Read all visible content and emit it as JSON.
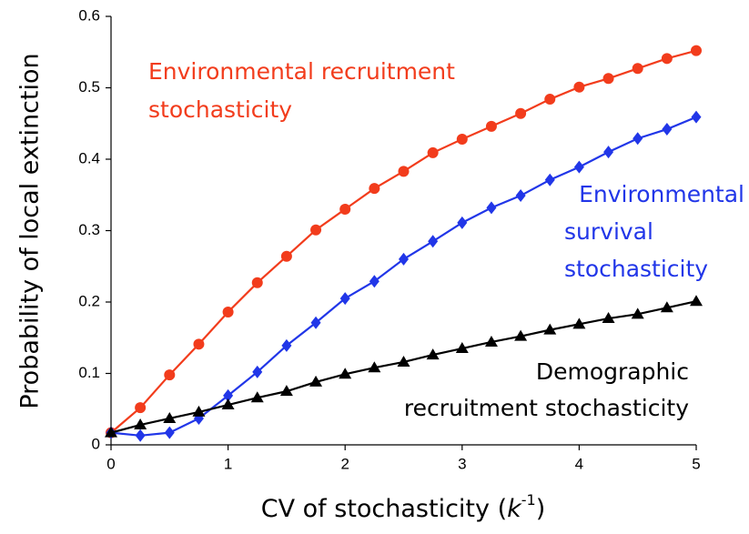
{
  "chart_data": {
    "type": "line",
    "xlabel": [
      "CV of stochasticity (",
      "k",
      "-1",
      ")"
    ],
    "ylabel": "Probability of local extinction",
    "x": [
      0,
      0.25,
      0.5,
      0.75,
      1,
      1.25,
      1.5,
      1.75,
      2,
      2.25,
      2.5,
      2.75,
      3,
      3.25,
      3.5,
      3.75,
      4,
      4.25,
      4.5,
      4.75,
      5
    ],
    "series": [
      {
        "label": [
          "Environmental recruitment",
          "stochasticity"
        ],
        "color": "#f23c1c",
        "marker": "circle",
        "values": [
          0.017,
          0.052,
          0.098,
          0.141,
          0.186,
          0.227,
          0.264,
          0.301,
          0.33,
          0.359,
          0.383,
          0.409,
          0.428,
          0.446,
          0.464,
          0.484,
          0.501,
          0.513,
          0.527,
          0.541,
          0.552
        ]
      },
      {
        "label": [
          "Environmental",
          "survival",
          "stochasticity"
        ],
        "color": "#2136e8",
        "marker": "diamond",
        "values": [
          0.017,
          0.013,
          0.017,
          0.037,
          0.069,
          0.102,
          0.139,
          0.171,
          0.205,
          0.229,
          0.26,
          0.285,
          0.311,
          0.332,
          0.349,
          0.371,
          0.389,
          0.41,
          0.429,
          0.442,
          0.459
        ]
      },
      {
        "label": [
          "Demographic",
          "recruitment stochasticity"
        ],
        "color": "#000000",
        "marker": "triangle",
        "values": [
          0.017,
          0.028,
          0.037,
          0.046,
          0.056,
          0.066,
          0.075,
          0.088,
          0.099,
          0.108,
          0.116,
          0.126,
          0.135,
          0.144,
          0.152,
          0.161,
          0.169,
          0.177,
          0.183,
          0.192,
          0.201
        ]
      }
    ],
    "xlim": [
      0,
      5
    ],
    "xticks": [
      0,
      1,
      2,
      3,
      4,
      5
    ],
    "ylim": [
      0,
      0.6
    ],
    "yticks": [
      0,
      0.1,
      0.2,
      0.3,
      0.4,
      0.5,
      0.6
    ]
  }
}
